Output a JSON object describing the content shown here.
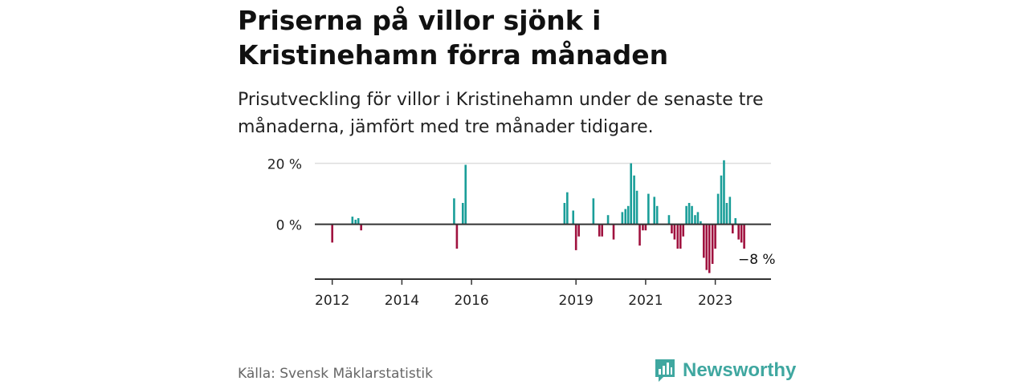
{
  "header": {
    "title": "Priserna på villor sjönk i Kristinehamn förra månaden",
    "subtitle": "Prisutveckling för villor i Kristinehamn under de senaste tre månaderna, jämfört med tre månader tidigare."
  },
  "footer": {
    "source": "Källa: Svensk Mäklarstatistik",
    "brand": "Newsworthy",
    "brand_icon": "newsworthy-logo-icon"
  },
  "colors": {
    "positive": "#1a9e99",
    "negative": "#a0123f",
    "axis": "#333333",
    "grid": "#dddddd"
  },
  "chart_data": {
    "type": "bar",
    "x_axis": {
      "start": 2011.5,
      "end": 2024.6,
      "ticks": [
        2012,
        2014,
        2016,
        2019,
        2021,
        2023
      ],
      "tick_labels": [
        "2012",
        "2014",
        "2016",
        "2019",
        "2021",
        "2023"
      ]
    },
    "y_axis": {
      "ylim": [
        -18,
        22
      ],
      "ticks": [
        0,
        20
      ],
      "tick_labels": [
        "0 %",
        "20 %"
      ]
    },
    "grid": true,
    "annotation": {
      "text": "−8 %",
      "x": 2024.33,
      "value": -8
    },
    "series": [
      {
        "points": [
          [
            2012.0,
            -6
          ],
          [
            2012.58,
            2.5
          ],
          [
            2012.67,
            1.5
          ],
          [
            2012.75,
            2
          ],
          [
            2012.83,
            -2
          ],
          [
            2015.5,
            8.5
          ],
          [
            2015.58,
            -8
          ],
          [
            2015.75,
            7
          ],
          [
            2015.83,
            19.5
          ],
          [
            2018.67,
            7
          ],
          [
            2018.75,
            10.5
          ],
          [
            2018.92,
            4.5
          ],
          [
            2019.0,
            -8.5
          ],
          [
            2019.08,
            -4
          ],
          [
            2019.5,
            8.5
          ],
          [
            2019.67,
            -4
          ],
          [
            2019.75,
            -4
          ],
          [
            2019.92,
            3
          ],
          [
            2020.08,
            -5
          ],
          [
            2020.33,
            4
          ],
          [
            2020.42,
            5
          ],
          [
            2020.5,
            6
          ],
          [
            2020.58,
            20
          ],
          [
            2020.67,
            16
          ],
          [
            2020.75,
            11
          ],
          [
            2020.83,
            -7
          ],
          [
            2020.92,
            -2
          ],
          [
            2021.0,
            -2
          ],
          [
            2021.08,
            10
          ],
          [
            2021.25,
            9
          ],
          [
            2021.33,
            6
          ],
          [
            2021.67,
            3
          ],
          [
            2021.75,
            -3
          ],
          [
            2021.83,
            -5
          ],
          [
            2021.92,
            -8
          ],
          [
            2022.0,
            -8
          ],
          [
            2022.08,
            -4
          ],
          [
            2022.17,
            6
          ],
          [
            2022.25,
            7
          ],
          [
            2022.33,
            6
          ],
          [
            2022.42,
            3
          ],
          [
            2022.5,
            4
          ],
          [
            2022.58,
            1
          ],
          [
            2022.67,
            -11
          ],
          [
            2022.75,
            -15
          ],
          [
            2022.83,
            -16
          ],
          [
            2022.92,
            -13
          ],
          [
            2023.0,
            -8
          ],
          [
            2023.08,
            10
          ],
          [
            2023.17,
            16
          ],
          [
            2023.25,
            21
          ],
          [
            2023.33,
            7
          ],
          [
            2023.42,
            9
          ],
          [
            2023.5,
            -3
          ],
          [
            2023.58,
            2
          ],
          [
            2023.67,
            -5
          ],
          [
            2023.75,
            -6
          ],
          [
            2023.83,
            -8
          ]
        ]
      }
    ]
  }
}
